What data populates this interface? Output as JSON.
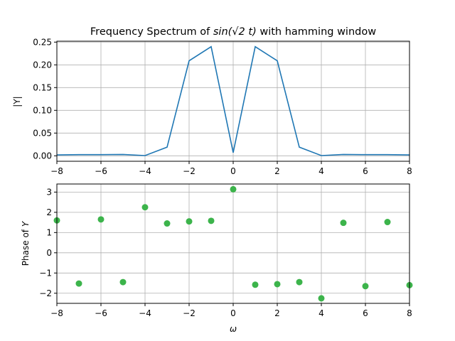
{
  "chart_data": [
    {
      "type": "line",
      "title_prefix": "Frequency Spectrum of ",
      "title_math": "sin(√2 t)",
      "title_suffix": " with hamming window",
      "xlabel": "",
      "ylabel": "|Y|",
      "xlim": [
        -8,
        8
      ],
      "ylim": [
        -0.012,
        0.252
      ],
      "grid": true,
      "color": "#1f77b4",
      "x_ticks": [
        -8,
        -6,
        -4,
        -2,
        0,
        2,
        4,
        6,
        8
      ],
      "x_tick_labels": [
        "−8",
        "−6",
        "−4",
        "−2",
        "0",
        "2",
        "4",
        "6",
        "8"
      ],
      "y_ticks": [
        0.0,
        0.05,
        0.1,
        0.15,
        0.2,
        0.25
      ],
      "y_tick_labels": [
        "0.00",
        "0.05",
        "0.10",
        "0.15",
        "0.20",
        "0.25"
      ],
      "series": [
        {
          "x": [
            -8,
            -7,
            -6,
            -5,
            -4,
            -3,
            -2,
            -1,
            0,
            1,
            2,
            3,
            4,
            5,
            6,
            7,
            8
          ],
          "values": [
            0.002,
            0.0025,
            0.0025,
            0.003,
            0.0005,
            0.019,
            0.209,
            0.24,
            0.007,
            0.24,
            0.209,
            0.019,
            0.0005,
            0.003,
            0.0025,
            0.0025,
            0.002
          ]
        }
      ]
    },
    {
      "type": "scatter",
      "xlabel": "ω",
      "ylabel_prefix": "Phase of ",
      "ylabel_math": "Y",
      "xlim": [
        -8,
        8
      ],
      "ylim": [
        -2.5,
        3.4
      ],
      "grid": true,
      "color": "#3cb44b",
      "x_ticks": [
        -8,
        -6,
        -4,
        -2,
        0,
        2,
        4,
        6,
        8
      ],
      "x_tick_labels": [
        "−8",
        "−6",
        "−4",
        "−2",
        "0",
        "2",
        "4",
        "6",
        "8"
      ],
      "y_ticks": [
        -2,
        -1,
        0,
        1,
        2,
        3
      ],
      "y_tick_labels": [
        "−2",
        "−1",
        "0",
        "1",
        "2",
        "3"
      ],
      "series": [
        {
          "x": [
            -8,
            -7,
            -6,
            -5,
            -4,
            -3,
            -2,
            -1,
            0,
            1,
            2,
            3,
            4,
            5,
            6,
            7,
            8
          ],
          "values": [
            1.6,
            -1.52,
            1.65,
            -1.45,
            2.25,
            1.45,
            1.55,
            1.58,
            3.14,
            -1.58,
            -1.55,
            -1.45,
            -2.25,
            1.48,
            -1.65,
            1.52,
            -1.6
          ]
        }
      ]
    }
  ]
}
